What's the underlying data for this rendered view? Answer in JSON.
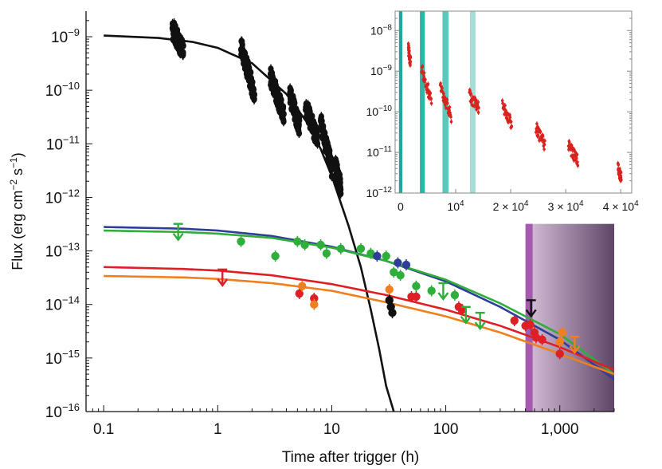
{
  "chart_data": [
    {
      "type": "scatter",
      "title": "",
      "xlabel": "Time after trigger (h)",
      "ylabel_main": "Flux (erg cm",
      "ylabel_sup1": "−2",
      "ylabel_mid": " s",
      "ylabel_sup2": "−1",
      "ylabel_end": ")",
      "xscale": "log",
      "yscale": "log",
      "xlim": [
        0.07,
        3000
      ],
      "ylim": [
        1e-16,
        3e-09
      ],
      "x_ticks": [
        {
          "value": 0.1,
          "label": "0.1"
        },
        {
          "value": 1,
          "label": "1"
        },
        {
          "value": 10,
          "label": "10"
        },
        {
          "value": 100,
          "label": "100"
        },
        {
          "value": 1000,
          "label": "1,000"
        }
      ],
      "y_ticks": [
        {
          "value": 1e-09,
          "base": "10",
          "exp": "−9"
        },
        {
          "value": 1e-10,
          "base": "10",
          "exp": "−10"
        },
        {
          "value": 1e-11,
          "base": "10",
          "exp": "−11"
        },
        {
          "value": 1e-12,
          "base": "10",
          "exp": "−12"
        },
        {
          "value": 1e-13,
          "base": "10",
          "exp": "−13"
        },
        {
          "value": 1e-14,
          "base": "10",
          "exp": "−14"
        },
        {
          "value": 1e-15,
          "base": "10",
          "exp": "−15"
        },
        {
          "value": 1e-16,
          "base": "10",
          "exp": "−16"
        }
      ],
      "shaded_region": {
        "x_start": 500,
        "x_end": 3000,
        "edge_color": "#a050a8",
        "fill_light": "#d9c2dc",
        "fill_dark": "#5f4566"
      },
      "models": [
        {
          "name": "x-ray model",
          "color": "#111111",
          "points": [
            [
              0.1,
              1.05e-09
            ],
            [
              0.3,
              9.5e-10
            ],
            [
              0.6,
              8e-10
            ],
            [
              1,
              6.2e-10
            ],
            [
              2,
              3.2e-10
            ],
            [
              4,
              8.5e-11
            ],
            [
              6,
              2.6e-11
            ],
            [
              8,
              8e-12
            ],
            [
              10,
              2.5e-12
            ],
            [
              14,
              3e-13
            ],
            [
              18,
              5e-14
            ],
            [
              22,
              8e-15
            ],
            [
              26,
              1.5e-15
            ],
            [
              30,
              3e-16
            ],
            [
              35,
              1e-16
            ]
          ]
        },
        {
          "name": "blue model",
          "color": "#2e3d9a",
          "points": [
            [
              0.1,
              2.8e-13
            ],
            [
              0.5,
              2.6e-13
            ],
            [
              1,
              2.4e-13
            ],
            [
              3,
              1.9e-13
            ],
            [
              10,
              1.2e-13
            ],
            [
              30,
              6.5e-14
            ],
            [
              100,
              2.7e-14
            ],
            [
              300,
              9e-15
            ],
            [
              1000,
              2.2e-15
            ],
            [
              3000,
              4e-16
            ]
          ]
        },
        {
          "name": "green model",
          "color": "#2fae3c",
          "points": [
            [
              0.1,
              2.4e-13
            ],
            [
              0.5,
              2.25e-13
            ],
            [
              1,
              2.1e-13
            ],
            [
              3,
              1.75e-13
            ],
            [
              10,
              1.15e-13
            ],
            [
              30,
              6.5e-14
            ],
            [
              100,
              2.9e-14
            ],
            [
              300,
              1.05e-14
            ],
            [
              1000,
              2.8e-15
            ],
            [
              3000,
              5e-16
            ]
          ]
        },
        {
          "name": "red model",
          "color": "#de1f26",
          "points": [
            [
              0.1,
              5e-14
            ],
            [
              0.5,
              4.6e-14
            ],
            [
              1,
              4.3e-14
            ],
            [
              3,
              3.5e-14
            ],
            [
              10,
              2.4e-14
            ],
            [
              30,
              1.5e-14
            ],
            [
              100,
              8e-15
            ],
            [
              300,
              4e-15
            ],
            [
              1000,
              1.6e-15
            ],
            [
              3000,
              6e-16
            ]
          ]
        },
        {
          "name": "orange model",
          "color": "#f07f1d",
          "points": [
            [
              0.1,
              3.4e-14
            ],
            [
              0.5,
              3.2e-14
            ],
            [
              1,
              3e-14
            ],
            [
              3,
              2.5e-14
            ],
            [
              10,
              1.8e-14
            ],
            [
              30,
              1.1e-14
            ],
            [
              100,
              6e-15
            ],
            [
              300,
              3e-15
            ],
            [
              1000,
              1.2e-15
            ],
            [
              3000,
              5e-16
            ]
          ]
        }
      ],
      "series": [
        {
          "name": "green",
          "color": "#2fae3c",
          "points": [
            [
              1.6,
              1.5e-13
            ],
            [
              3.2,
              8e-14
            ],
            [
              5,
              1.5e-13
            ],
            [
              5.8,
              1.3e-13
            ],
            [
              8,
              1.3e-13
            ],
            [
              9,
              9e-14
            ],
            [
              12,
              1.1e-13
            ],
            [
              18,
              1.1e-13
            ],
            [
              22,
              9e-14
            ],
            [
              30,
              8e-14
            ],
            [
              35,
              4e-14
            ],
            [
              40,
              3.5e-14
            ],
            [
              55,
              2.2e-14
            ],
            [
              75,
              1.8e-14
            ],
            [
              120,
              1.5e-14
            ]
          ]
        },
        {
          "name": "blue",
          "color": "#2e3d9a",
          "points": [
            [
              25,
              8e-14
            ],
            [
              38,
              6e-14
            ],
            [
              45,
              5.5e-14
            ]
          ]
        },
        {
          "name": "red",
          "color": "#de1f26",
          "points": [
            [
              5.2,
              1.6e-14
            ],
            [
              7,
              1.3e-14
            ],
            [
              50,
              1.4e-14
            ],
            [
              55,
              1.4e-14
            ],
            [
              130,
              9e-15
            ],
            [
              140,
              8e-15
            ],
            [
              400,
              5e-15
            ],
            [
              500,
              4e-15
            ],
            [
              550,
              4.2e-15
            ],
            [
              600,
              3e-15
            ],
            [
              620,
              2.4e-15
            ],
            [
              700,
              2.2e-15
            ],
            [
              1000,
              1.2e-15
            ]
          ]
        },
        {
          "name": "orange",
          "color": "#f07f1d",
          "points": [
            [
              5.5,
              2.2e-14
            ],
            [
              7,
              1e-14
            ],
            [
              32,
              1.9e-14
            ],
            [
              1050,
              3e-15
            ],
            [
              1000,
              2e-15
            ]
          ]
        },
        {
          "name": "black",
          "color": "#111111",
          "points": [
            [
              32,
              1.2e-14
            ],
            [
              33,
              9e-15
            ],
            [
              34,
              7e-15
            ]
          ]
        }
      ],
      "upper_limits": [
        {
          "color": "#2fae3c",
          "x": 0.45,
          "y": 3.2e-13
        },
        {
          "color": "#de1f26",
          "x": 1.1,
          "y": 4.5e-14
        },
        {
          "color": "#2fae3c",
          "x": 95,
          "y": 2.5e-14
        },
        {
          "color": "#2fae3c",
          "x": 200,
          "y": 7e-15
        },
        {
          "color": "#2fae3c",
          "x": 150,
          "y": 9e-15
        },
        {
          "color": "#111111",
          "x": 560,
          "y": 1.2e-14
        },
        {
          "color": "#f07f1d",
          "x": 1350,
          "y": 2.5e-15
        }
      ],
      "xray_clusters": [
        {
          "x_start": 0.4,
          "x_end": 0.5,
          "y_high": 1.4e-09,
          "y_low": 5.5e-10
        },
        {
          "x_start": 1.6,
          "x_end": 2.1,
          "y_high": 7e-10,
          "y_low": 8e-11
        },
        {
          "x_start": 2.9,
          "x_end": 3.8,
          "y_high": 1.8e-10,
          "y_low": 3.5e-11
        },
        {
          "x_start": 4.3,
          "x_end": 5.2,
          "y_high": 8e-11,
          "y_low": 2.2e-11
        },
        {
          "x_start": 5.9,
          "x_end": 7.5,
          "y_high": 5e-11,
          "y_low": 1.2e-11
        },
        {
          "x_start": 8.0,
          "x_end": 10.0,
          "y_high": 2.5e-11,
          "y_low": 3.5e-12
        },
        {
          "x_start": 10.8,
          "x_end": 12.0,
          "y_high": 3.5e-12,
          "y_low": 1.5e-12
        }
      ]
    },
    {
      "type": "scatter",
      "title": "",
      "xscale": "linear",
      "yscale": "log",
      "xlim": [
        -1000,
        42000
      ],
      "ylim": [
        1e-12,
        3e-08
      ],
      "x_ticks": [
        {
          "value": 0,
          "label": "0"
        },
        {
          "value": 10000,
          "base": "10",
          "exp": "4"
        },
        {
          "value": 20000,
          "base": "2 × 10",
          "exp": "4"
        },
        {
          "value": 30000,
          "base": "3 × 10",
          "exp": "4"
        },
        {
          "value": 40000,
          "base": "4 × 10",
          "exp": "4"
        }
      ],
      "y_ticks": [
        {
          "value": 1e-08,
          "base": "10",
          "exp": "−8"
        },
        {
          "value": 1e-09,
          "base": "10",
          "exp": "−9"
        },
        {
          "value": 1e-10,
          "base": "10",
          "exp": "−10"
        },
        {
          "value": 1e-11,
          "base": "10",
          "exp": "−11"
        },
        {
          "value": 1e-12,
          "base": "10",
          "exp": "−12"
        }
      ],
      "bands": [
        {
          "x_start": -300,
          "x_end": 300,
          "color": "#1aa99a"
        },
        {
          "x_start": 3500,
          "x_end": 4400,
          "color": "#2db5a7"
        },
        {
          "x_start": 7600,
          "x_end": 8700,
          "color": "#5fc8bd"
        },
        {
          "x_start": 12600,
          "x_end": 13600,
          "color": "#a3ddd5"
        }
      ],
      "series": [
        {
          "name": "x-ray",
          "color": "#d9231f",
          "clusters": [
            {
              "x_start": 1400,
              "x_end": 1800,
              "y_high": 3.5e-09,
              "y_low": 1.6e-09
            },
            {
              "x_start": 3800,
              "x_end": 5600,
              "y_high": 1.2e-09,
              "y_low": 1.8e-10
            },
            {
              "x_start": 7200,
              "x_end": 9200,
              "y_high": 4e-10,
              "y_low": 8e-11
            },
            {
              "x_start": 12500,
              "x_end": 14200,
              "y_high": 2.5e-10,
              "y_low": 1.2e-10
            },
            {
              "x_start": 18500,
              "x_end": 20200,
              "y_high": 1.5e-10,
              "y_low": 5e-11
            },
            {
              "x_start": 24600,
              "x_end": 26200,
              "y_high": 4e-11,
              "y_low": 1.5e-11
            },
            {
              "x_start": 30500,
              "x_end": 32200,
              "y_high": 1.5e-11,
              "y_low": 6e-12
            },
            {
              "x_start": 39500,
              "x_end": 40100,
              "y_high": 4e-12,
              "y_low": 2.5e-12
            }
          ]
        }
      ]
    }
  ]
}
